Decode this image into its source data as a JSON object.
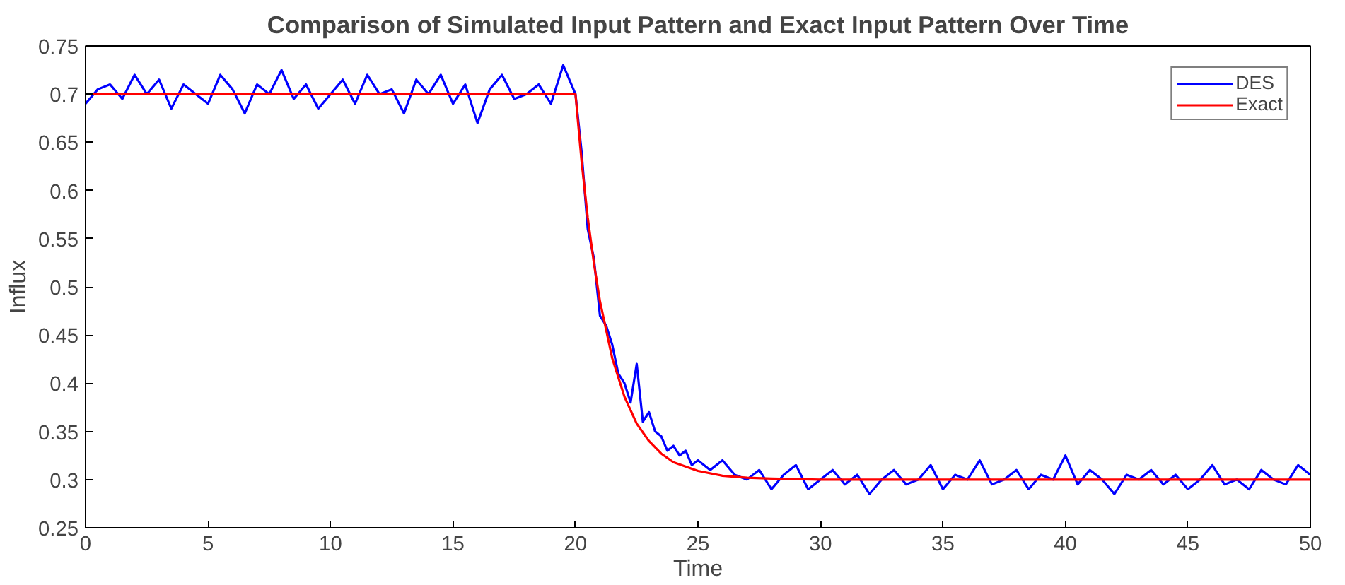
{
  "chart_data": {
    "type": "line",
    "title": "Comparison of Simulated Input Pattern and Exact Input Pattern Over Time",
    "xlabel": "Time",
    "ylabel": "Influx",
    "xlim": [
      0,
      50
    ],
    "xticks": [
      0,
      5,
      10,
      15,
      20,
      25,
      30,
      35,
      40,
      45,
      50
    ],
    "ylim": [
      0.25,
      0.75
    ],
    "yticks": [
      0.25,
      0.3,
      0.35,
      0.4,
      0.45,
      0.5,
      0.55,
      0.6,
      0.65,
      0.7,
      0.75
    ],
    "grid": false,
    "legend": "top right",
    "marker": "none",
    "line_style": "solid",
    "series": [
      {
        "name": "DES",
        "color": "#0000ff",
        "x": [
          0,
          0.5,
          1,
          1.5,
          2,
          2.5,
          3,
          3.5,
          4,
          4.5,
          5,
          5.5,
          6,
          6.5,
          7,
          7.5,
          8,
          8.5,
          9,
          9.5,
          10,
          10.5,
          11,
          11.5,
          12,
          12.5,
          13,
          13.5,
          14,
          14.5,
          15,
          15.5,
          16,
          16.5,
          17,
          17.5,
          18,
          18.5,
          19,
          19.5,
          20,
          20.25,
          20.5,
          20.75,
          21,
          21.25,
          21.5,
          21.75,
          22,
          22.25,
          22.5,
          22.75,
          23,
          23.25,
          23.5,
          23.75,
          24,
          24.25,
          24.5,
          24.75,
          25,
          25.5,
          26,
          26.5,
          27,
          27.5,
          28,
          28.5,
          29,
          29.5,
          30,
          30.5,
          31,
          31.5,
          32,
          32.5,
          33,
          33.5,
          34,
          34.5,
          35,
          35.5,
          36,
          36.5,
          37,
          37.5,
          38,
          38.5,
          39,
          39.5,
          40,
          40.5,
          41,
          41.5,
          42,
          42.5,
          43,
          43.5,
          44,
          44.5,
          45,
          45.5,
          46,
          46.5,
          47,
          47.5,
          48,
          48.5,
          49,
          49.5,
          50
        ],
        "values": [
          0.69,
          0.705,
          0.71,
          0.695,
          0.72,
          0.7,
          0.715,
          0.685,
          0.71,
          0.7,
          0.69,
          0.72,
          0.705,
          0.68,
          0.71,
          0.7,
          0.725,
          0.695,
          0.71,
          0.685,
          0.7,
          0.715,
          0.69,
          0.72,
          0.7,
          0.705,
          0.68,
          0.715,
          0.7,
          0.72,
          0.69,
          0.71,
          0.67,
          0.705,
          0.72,
          0.695,
          0.7,
          0.71,
          0.69,
          0.73,
          0.7,
          0.64,
          0.56,
          0.53,
          0.47,
          0.46,
          0.44,
          0.41,
          0.4,
          0.38,
          0.42,
          0.36,
          0.37,
          0.35,
          0.345,
          0.33,
          0.335,
          0.325,
          0.33,
          0.315,
          0.32,
          0.31,
          0.32,
          0.305,
          0.3,
          0.31,
          0.29,
          0.305,
          0.315,
          0.29,
          0.3,
          0.31,
          0.295,
          0.305,
          0.285,
          0.3,
          0.31,
          0.295,
          0.3,
          0.315,
          0.29,
          0.305,
          0.3,
          0.32,
          0.295,
          0.3,
          0.31,
          0.29,
          0.305,
          0.3,
          0.325,
          0.295,
          0.31,
          0.3,
          0.285,
          0.305,
          0.3,
          0.31,
          0.295,
          0.305,
          0.29,
          0.3,
          0.315,
          0.295,
          0.3,
          0.29,
          0.31,
          0.3,
          0.295,
          0.315,
          0.305
        ]
      },
      {
        "name": "Exact",
        "color": "#ff0000",
        "x": [
          0,
          20,
          20.25,
          20.5,
          20.75,
          21,
          21.5,
          22,
          22.5,
          23,
          23.5,
          24,
          25,
          26,
          27,
          28,
          30,
          50
        ],
        "values": [
          0.7,
          0.7,
          0.63,
          0.572,
          0.525,
          0.485,
          0.426,
          0.386,
          0.358,
          0.34,
          0.327,
          0.318,
          0.309,
          0.304,
          0.302,
          0.301,
          0.3,
          0.3
        ]
      }
    ]
  }
}
